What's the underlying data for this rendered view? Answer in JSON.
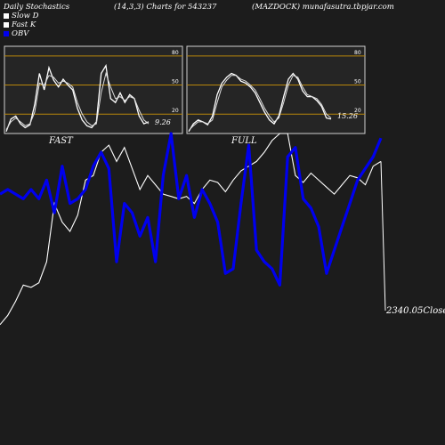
{
  "header": {
    "left": "Daily Stochastics",
    "center": "(14,3,3) Charts for 543237",
    "right": "(MAZDOCK) munafasutra.tbpjar.com"
  },
  "legend": [
    {
      "label": "Slow  D",
      "color": "#ffffff"
    },
    {
      "label": "Fast K",
      "color": "#ffffff"
    },
    {
      "label": "OBV",
      "color": "#0000ee"
    }
  ],
  "colors": {
    "background": "#1c1c1c",
    "panel_bg": "#252525",
    "grid": "#b8860b",
    "obv": "#0000ee",
    "price": "#ffffff"
  },
  "chart_data": [
    {
      "type": "line",
      "panel": "FAST",
      "label": "FAST",
      "ylim": [
        0,
        90
      ],
      "yticks": [
        20,
        50,
        80
      ],
      "last_value_label": "9.26",
      "series": [
        {
          "name": "Fast K",
          "values": [
            2,
            15,
            18,
            10,
            6,
            9,
            30,
            62,
            45,
            68,
            55,
            48,
            56,
            50,
            45,
            26,
            14,
            8,
            6,
            12,
            62,
            70,
            36,
            32,
            42,
            32,
            40,
            36,
            18,
            10,
            12
          ]
        },
        {
          "name": "Slow  D",
          "values": [
            4,
            12,
            16,
            12,
            8,
            10,
            22,
            52,
            50,
            60,
            58,
            52,
            54,
            52,
            48,
            32,
            20,
            12,
            8,
            10,
            42,
            62,
            48,
            36,
            38,
            34,
            38,
            36,
            24,
            14,
            10
          ]
        }
      ]
    },
    {
      "type": "line",
      "panel": "FULL",
      "label": "FULL",
      "ylim": [
        0,
        90
      ],
      "yticks": [
        20,
        50,
        80
      ],
      "last_value_label": "15.26",
      "series": [
        {
          "name": "Fast K",
          "values": [
            2,
            10,
            14,
            12,
            9,
            18,
            40,
            52,
            58,
            62,
            60,
            54,
            52,
            48,
            42,
            32,
            22,
            14,
            10,
            18,
            38,
            56,
            62,
            56,
            44,
            38,
            38,
            34,
            28,
            16,
            15
          ]
        },
        {
          "name": "Slow  D",
          "values": [
            3,
            8,
            12,
            12,
            10,
            14,
            32,
            48,
            55,
            60,
            60,
            56,
            54,
            50,
            45,
            36,
            26,
            18,
            12,
            16,
            32,
            50,
            60,
            58,
            48,
            40,
            38,
            36,
            30,
            20,
            16
          ]
        }
      ]
    },
    {
      "type": "line",
      "panel": "price-obv",
      "close_label": "2340.05Close",
      "series": [
        {
          "name": "Close",
          "values": [
            0.18,
            0.22,
            0.28,
            0.35,
            0.34,
            0.36,
            0.45,
            0.7,
            0.62,
            0.58,
            0.65,
            0.8,
            0.82,
            0.92,
            0.95,
            0.88,
            0.94,
            0.85,
            0.76,
            0.82,
            0.78,
            0.74,
            0.73,
            0.72,
            0.73,
            0.7,
            0.76,
            0.8,
            0.79,
            0.75,
            0.8,
            0.84,
            0.86,
            0.88,
            0.92,
            0.97,
            1.0,
            1.0,
            0.82,
            0.79,
            0.83,
            0.8,
            0.77,
            0.74,
            0.78,
            0.82,
            0.81,
            0.78,
            0.86,
            0.88
          ]
        },
        {
          "name": "OBV",
          "values": [
            0.74,
            0.76,
            0.74,
            0.72,
            0.76,
            0.72,
            0.8,
            0.66,
            0.86,
            0.7,
            0.72,
            0.76,
            0.86,
            0.92,
            0.85,
            0.45,
            0.7,
            0.66,
            0.56,
            0.64,
            0.45,
            0.82,
            1.0,
            0.72,
            0.82,
            0.64,
            0.76,
            0.7,
            0.62,
            0.4,
            0.42,
            0.7,
            0.95,
            0.5,
            0.45,
            0.42,
            0.35,
            0.9,
            0.94,
            0.72,
            0.68,
            0.6,
            0.4,
            0.5,
            0.6,
            0.7,
            0.8,
            0.85,
            0.9,
            0.98
          ]
        }
      ]
    }
  ]
}
